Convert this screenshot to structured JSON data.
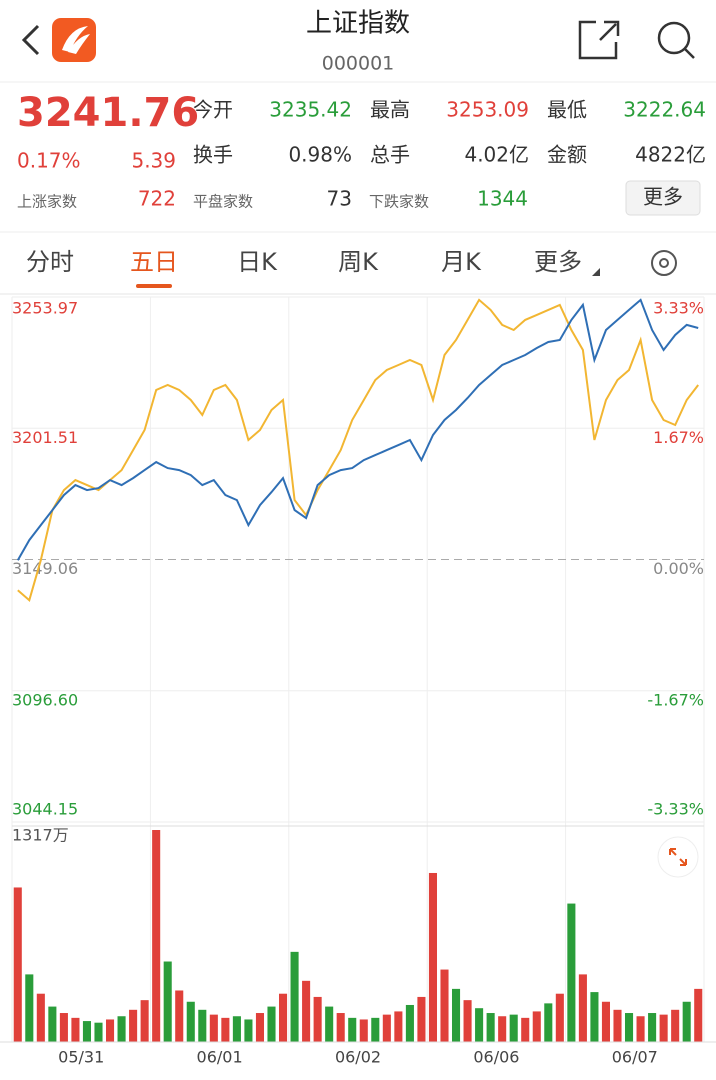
{
  "header": {
    "title": "上证指数",
    "code": "000001"
  },
  "quote": {
    "price": "3241.76",
    "change_pct": "0.17%",
    "change": "5.39",
    "stats": [
      {
        "label": "今开",
        "value": "3235.42"
      },
      {
        "label": "最高",
        "value": "3253.09"
      },
      {
        "label": "最低",
        "value": "3222.64"
      },
      {
        "label": "换手",
        "value": "0.98%"
      },
      {
        "label": "总手",
        "value": "4.02亿"
      },
      {
        "label": "金额",
        "value": "4822亿"
      }
    ],
    "breadth": [
      {
        "label": "上涨家数",
        "value": "722"
      },
      {
        "label": "平盘家数",
        "value": "73"
      },
      {
        "label": "下跌家数",
        "value": "1344"
      }
    ],
    "more": "更多"
  },
  "tabs": [
    "分时",
    "五日",
    "日K",
    "周K",
    "月K",
    "更多"
  ],
  "chart_data": {
    "type": "line",
    "days": [
      "05/31",
      "06/01",
      "06/02",
      "06/06",
      "06/07"
    ],
    "ylim": [
      3044.15,
      3253.97
    ],
    "yticks": [
      3253.97,
      3201.51,
      3149.06,
      {
        "value": 3096.6,
        "label": "3096.60"
      },
      3044.15
    ],
    "y2lim": [
      -3.33,
      3.33
    ],
    "y2ticks": [
      {
        "value": 3.33,
        "label": "3.33%"
      },
      {
        "value": 1.67,
        "label": "1.67%"
      },
      {
        "value": 0,
        "label": "0.00%"
      },
      {
        "value": -1.67,
        "label": "-1.67%"
      },
      {
        "value": -3.33,
        "label": "-3.33%"
      }
    ],
    "up_color": "#e0403a",
    "down_color": "#2a9d3a",
    "flat_color": "#888888",
    "series": [
      {
        "color": "#2f6fb5",
        "values": [
          3148.8,
          3156.8,
          3162.8,
          3168.8,
          3174.8,
          3178.8,
          3176.8,
          3177.6,
          3180.8,
          3178.8,
          3181.6,
          3184.8,
          3188.0,
          3185.6,
          3184.8,
          3182.8,
          3178.8,
          3180.8,
          3174.8,
          3172.8,
          3162.8,
          3170.8,
          3176.0,
          3181.6,
          3168.8,
          3165.6,
          3178.8,
          3182.8,
          3184.8,
          3185.6,
          3188.8,
          3190.8,
          3192.8,
          3194.8,
          3196.8,
          3188.8,
          3198.8,
          3204.8,
          3208.8,
          3213.6,
          3218.8,
          3222.8,
          3226.8,
          3228.8,
          3230.8,
          3233.6,
          3236.0,
          3236.8,
          3244.8,
          3250.8,
          3228.8,
          3240.8,
          3244.8,
          3248.8,
          3252.8,
          3240.8,
          3232.8,
          3238.8,
          3242.8,
          3241.6
        ]
      },
      {
        "color": "#f2b632",
        "values": [
          3136.8,
          3132.8,
          3148.8,
          3168.8,
          3176.8,
          3180.8,
          3178.8,
          3176.8,
          3180.8,
          3184.8,
          3192.8,
          3200.8,
          3216.8,
          3218.8,
          3216.8,
          3212.8,
          3206.8,
          3216.8,
          3218.8,
          3212.8,
          3196.8,
          3200.8,
          3208.8,
          3212.8,
          3172.8,
          3166.8,
          3176.8,
          3184.8,
          3192.8,
          3204.8,
          3212.8,
          3220.8,
          3224.8,
          3226.8,
          3228.8,
          3226.8,
          3212.8,
          3230.8,
          3236.8,
          3244.8,
          3252.8,
          3248.8,
          3242.8,
          3240.8,
          3244.8,
          3246.8,
          3248.8,
          3250.8,
          3240.8,
          3232.8,
          3196.8,
          3212.8,
          3220.8,
          3224.8,
          3236.8,
          3212.8,
          3204.8,
          3202.8,
          3212.8,
          3218.8
        ]
      }
    ],
    "volume": {
      "ylim": [
        0,
        1317
      ],
      "yticks": [
        {
          "value": 1317,
          "label": "1317万"
        }
      ],
      "values": [
        960,
        420,
        300,
        220,
        180,
        150,
        130,
        120,
        140,
        160,
        200,
        260,
        1317,
        500,
        320,
        250,
        200,
        170,
        150,
        160,
        140,
        180,
        220,
        300,
        560,
        380,
        280,
        220,
        180,
        150,
        140,
        150,
        170,
        190,
        230,
        280,
        1050,
        450,
        330,
        260,
        210,
        180,
        160,
        170,
        150,
        190,
        240,
        300,
        860,
        420,
        310,
        250,
        200,
        180,
        160,
        180,
        170,
        200,
        250,
        330
      ],
      "up": [
        true,
        false,
        true,
        false,
        true,
        true,
        false,
        false,
        true,
        false,
        true,
        true,
        true,
        false,
        true,
        false,
        false,
        true,
        true,
        false,
        false,
        true,
        false,
        true,
        false,
        true,
        true,
        false,
        true,
        false,
        true,
        false,
        true,
        true,
        false,
        true,
        true,
        true,
        false,
        true,
        false,
        false,
        true,
        false,
        true,
        true,
        false,
        true,
        false,
        true,
        false,
        true,
        true,
        false,
        true,
        false,
        true,
        true,
        false,
        true
      ]
    }
  }
}
